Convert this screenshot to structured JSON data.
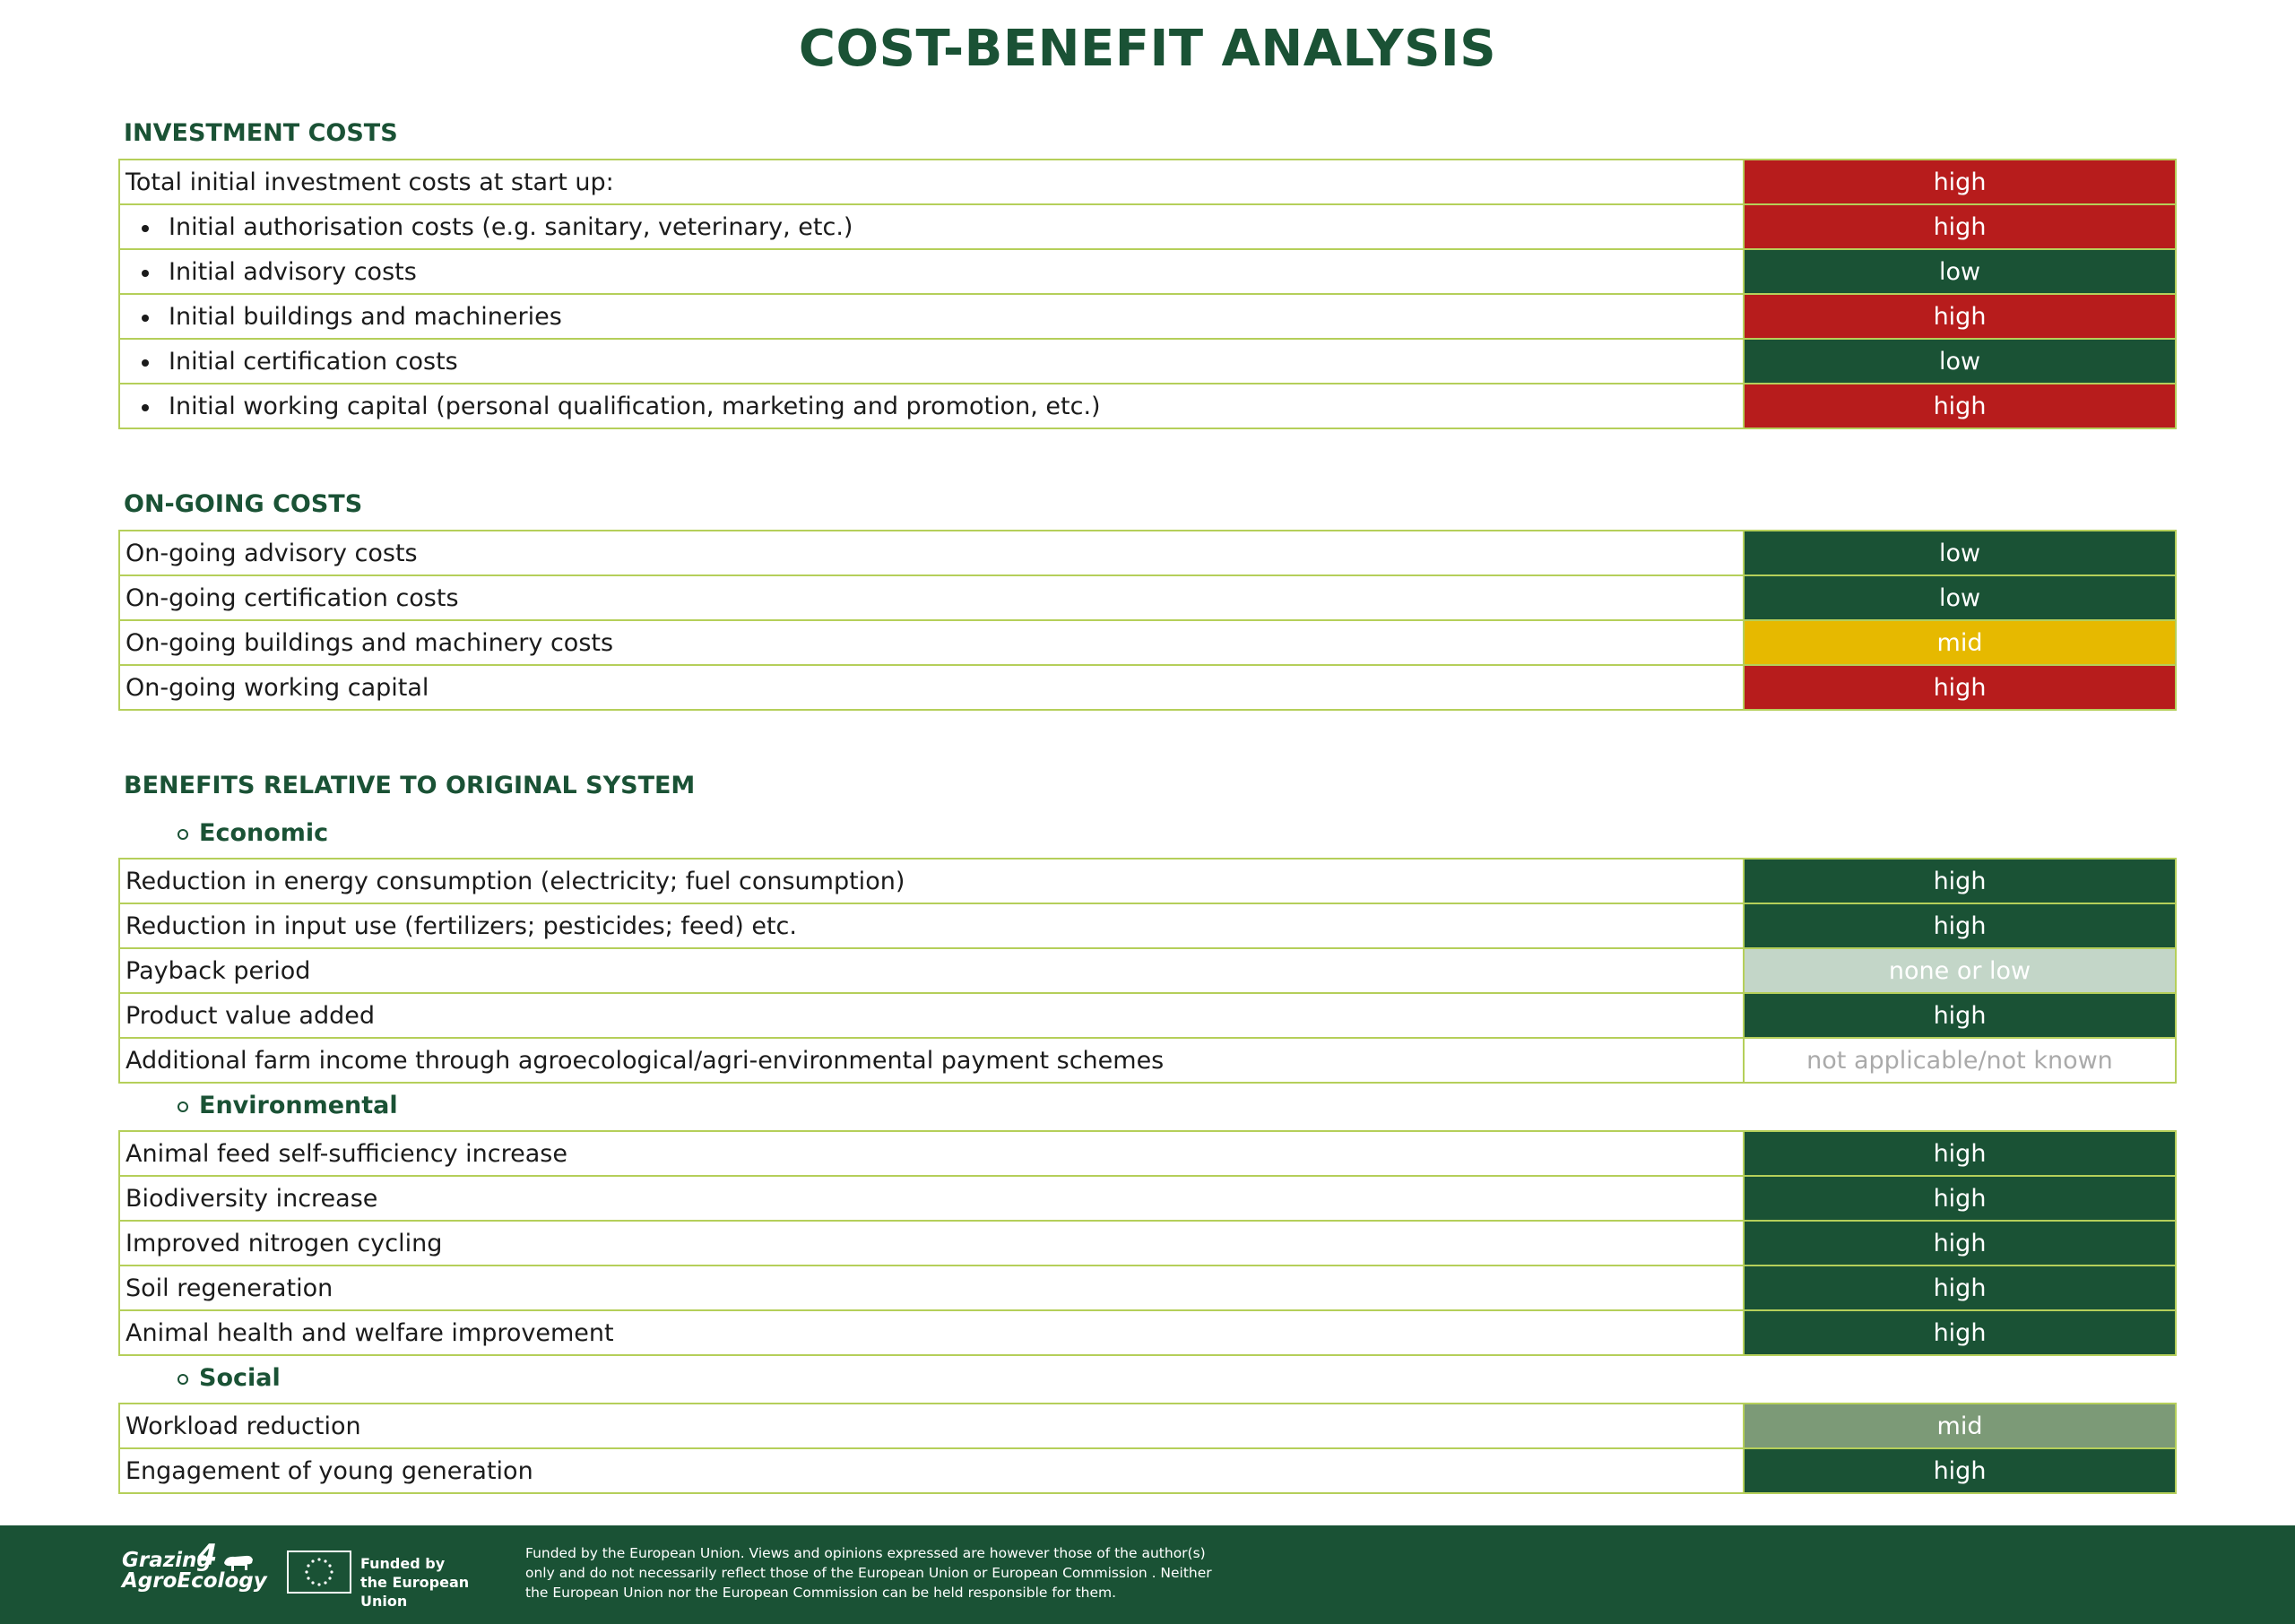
{
  "title": "COST-BENEFIT ANALYSIS",
  "investment": {
    "title": "INVESTMENT COSTS",
    "rows": [
      {
        "label": "Total initial investment costs at start up:",
        "value": "high",
        "level": "red"
      },
      {
        "label": "Initial authorisation costs (e.g. sanitary, veterinary, etc.)",
        "value": "high",
        "level": "red"
      },
      {
        "label": "Initial advisory costs",
        "value": "low",
        "level": "green"
      },
      {
        "label": "Initial buildings and machineries",
        "value": "high",
        "level": "red"
      },
      {
        "label": "Initial certification costs",
        "value": "low",
        "level": "green"
      },
      {
        "label": "Initial working capital (personal qualification, marketing and promotion, etc.)",
        "value": "high",
        "level": "red"
      }
    ]
  },
  "ongoing": {
    "title": "ON-GOING COSTS",
    "rows": [
      {
        "label": "On-going advisory costs",
        "value": "low",
        "level": "green"
      },
      {
        "label": "On-going certification costs",
        "value": "low",
        "level": "green"
      },
      {
        "label": "On-going buildings and machinery costs",
        "value": "mid",
        "level": "yellow"
      },
      {
        "label": "On-going working capital",
        "value": "high",
        "level": "red"
      }
    ]
  },
  "benefits": {
    "title": "BENEFITS RELATIVE TO ORIGINAL SYSTEM",
    "economic": {
      "title": "Economic",
      "rows": [
        {
          "label": "Reduction in energy consumption (electricity; fuel consumption)",
          "value": "high",
          "level": "green"
        },
        {
          "label": "Reduction in input use (fertilizers; pesticides; feed) etc.",
          "value": "high",
          "level": "green"
        },
        {
          "label": "Payback period",
          "value": "none or low",
          "level": "pale"
        },
        {
          "label": "Product value added",
          "value": "high",
          "level": "green"
        },
        {
          "label": "Additional farm income through agroecological/agri-environmental payment schemes",
          "value": "not applicable/not known",
          "level": "none"
        }
      ]
    },
    "environmental": {
      "title": "Environmental",
      "rows": [
        {
          "label": "Animal feed self-sufficiency increase",
          "value": "high",
          "level": "green"
        },
        {
          "label": "Biodiversity increase",
          "value": "high",
          "level": "green"
        },
        {
          "label": "Improved nitrogen cycling",
          "value": "high",
          "level": "green"
        },
        {
          "label": "Soil regeneration",
          "value": "high",
          "level": "green"
        },
        {
          "label": "Animal health and welfare improvement",
          "value": "high",
          "level": "green"
        }
      ]
    },
    "social": {
      "title": "Social",
      "rows": [
        {
          "label": "Workload reduction",
          "value": "mid",
          "level": "sage"
        },
        {
          "label": "Engagement of young generation",
          "value": "high",
          "level": "green"
        }
      ]
    }
  },
  "colors": {
    "red": "#b71c1c",
    "green": "#1a5235",
    "yellow": "#e6b900",
    "pale": "#c3d6c8",
    "sage": "#7c9a77",
    "border": "#b5cf5a"
  },
  "footer": {
    "logo_line1": "Grazing",
    "logo_four": "4",
    "logo_line2": "AgroEcology",
    "eu_line1": "Funded by",
    "eu_line2": "the European Union",
    "disclaimer_lines": [
      "Funded by the European Union. Views and opinions expressed are however those of the author(s)",
      "only and do not necessarily reflect those of the European Union or European Commission . Neither",
      "the European Union nor the European Commission can be held responsible for them."
    ]
  }
}
